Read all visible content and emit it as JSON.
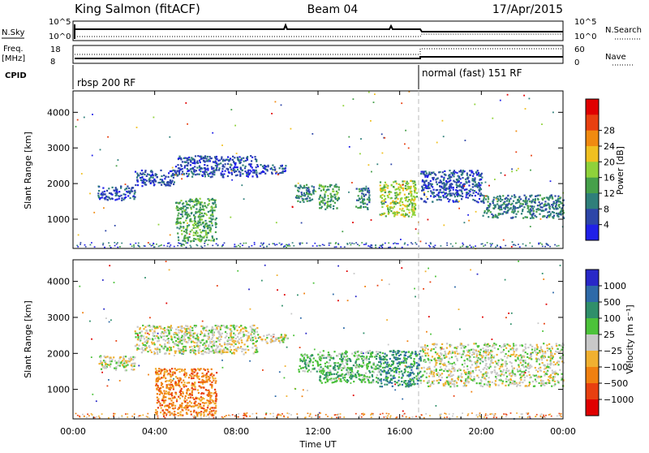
{
  "header": {
    "title_left": "King Salmon (fitACF)",
    "title_center": "Beam 04",
    "title_right": "17/Apr/2015"
  },
  "strip_panels": {
    "nsky_label": "N.Sky",
    "nsky_ticks": [
      "10^5",
      "10^0"
    ],
    "nsearch_label": "N.Search",
    "nsearch_ticks": [
      "10^5",
      "10^0"
    ],
    "freq_label_1": "Freq.",
    "freq_label_2": "[MHz]",
    "freq_ticks": [
      "18",
      "8"
    ],
    "nave_label": "Nave",
    "nave_ticks": [
      "60",
      "0"
    ],
    "cpid_label": "CPID",
    "cpid_segments": [
      {
        "label": "rbsp 200 RF",
        "start_hour": 0
      },
      {
        "label": "normal (fast) 151 RF",
        "start_hour": 17
      }
    ]
  },
  "chart_data": [
    {
      "type": "heatmap",
      "name": "power",
      "xlabel": "",
      "ylabel": "Slant Range [km]",
      "xlim": [
        0,
        24
      ],
      "ylim": [
        180,
        4600
      ],
      "yticks": [
        "1000",
        "2000",
        "3000",
        "4000"
      ],
      "yticks_values": [
        1000,
        2000,
        3000,
        4000
      ],
      "colorbar_label": "Power [dB]",
      "colorbar_ticks": [
        "4",
        "8",
        "12",
        "16",
        "20",
        "24",
        "28"
      ],
      "colorbar_colors": [
        "#2020e8",
        "#2d46a8",
        "#2f7f7a",
        "#46a04a",
        "#8fd23a",
        "#f0c020",
        "#f08a10",
        "#e84010",
        "#e00000"
      ],
      "regions": [
        {
          "x": [
            1.2,
            3.0
          ],
          "y": [
            1550,
            1950
          ],
          "level": 1
        },
        {
          "x": [
            3.0,
            5.0
          ],
          "y": [
            1950,
            2400
          ],
          "level": 1
        },
        {
          "x": [
            5.0,
            9.0
          ],
          "y": [
            2200,
            2800
          ],
          "level": 1
        },
        {
          "x": [
            9.0,
            10.5
          ],
          "y": [
            2300,
            2550
          ],
          "level": 1
        },
        {
          "x": [
            5.0,
            7.0
          ],
          "y": [
            400,
            1600
          ],
          "level": 3
        },
        {
          "x": [
            10.8,
            11.8
          ],
          "y": [
            1500,
            2000
          ],
          "level": 2
        },
        {
          "x": [
            12.0,
            13.0
          ],
          "y": [
            1300,
            2000
          ],
          "level": 3
        },
        {
          "x": [
            13.8,
            14.5
          ],
          "y": [
            1300,
            1900
          ],
          "level": 2
        },
        {
          "x": [
            15.0,
            16.8
          ],
          "y": [
            1100,
            2100
          ],
          "level": 4
        },
        {
          "x": [
            17.0,
            20.0
          ],
          "y": [
            1500,
            2400
          ],
          "level": 1
        },
        {
          "x": [
            20.0,
            24.0
          ],
          "y": [
            1050,
            1700
          ],
          "level": 2
        }
      ]
    },
    {
      "type": "heatmap",
      "name": "velocity",
      "xlabel": "Time UT",
      "ylabel": "Slant Range [km]",
      "xlim": [
        0,
        24
      ],
      "ylim": [
        180,
        4600
      ],
      "xticks": [
        "00:00",
        "04:00",
        "08:00",
        "12:00",
        "16:00",
        "20:00",
        "00:00"
      ],
      "xticks_values": [
        0,
        4,
        8,
        12,
        16,
        20,
        24
      ],
      "yticks": [
        "1000",
        "2000",
        "3000",
        "4000"
      ],
      "yticks_values": [
        1000,
        2000,
        3000,
        4000
      ],
      "colorbar_label": "Velocity [m s⁻¹]",
      "colorbar_ticks": [
        "1000",
        "500",
        "100",
        "25",
        "−25",
        "−100",
        "−500",
        "−1000"
      ],
      "colorbar_colors": [
        "#2828c8",
        "#2e6aa8",
        "#2f8f6a",
        "#4cc23a",
        "#c8c8c8",
        "#f0b030",
        "#f08010",
        "#e84010",
        "#e00000"
      ],
      "regions": [
        {
          "x": [
            1.2,
            3.0
          ],
          "y": [
            1550,
            1950
          ],
          "level": 4
        },
        {
          "x": [
            3.0,
            9.0
          ],
          "y": [
            2000,
            2800
          ],
          "level": 4
        },
        {
          "x": [
            9.0,
            10.5
          ],
          "y": [
            2300,
            2550
          ],
          "level": 4
        },
        {
          "x": [
            4.0,
            7.0
          ],
          "y": [
            300,
            1600
          ],
          "level": 6
        },
        {
          "x": [
            11.0,
            12.0
          ],
          "y": [
            1500,
            2000
          ],
          "level": 3
        },
        {
          "x": [
            12.0,
            15.0
          ],
          "y": [
            1200,
            2100
          ],
          "level": 3
        },
        {
          "x": [
            15.0,
            17.0
          ],
          "y": [
            1100,
            2100
          ],
          "level": 2
        },
        {
          "x": [
            17.0,
            24.0
          ],
          "y": [
            1100,
            2300
          ],
          "level": 4
        }
      ]
    }
  ]
}
